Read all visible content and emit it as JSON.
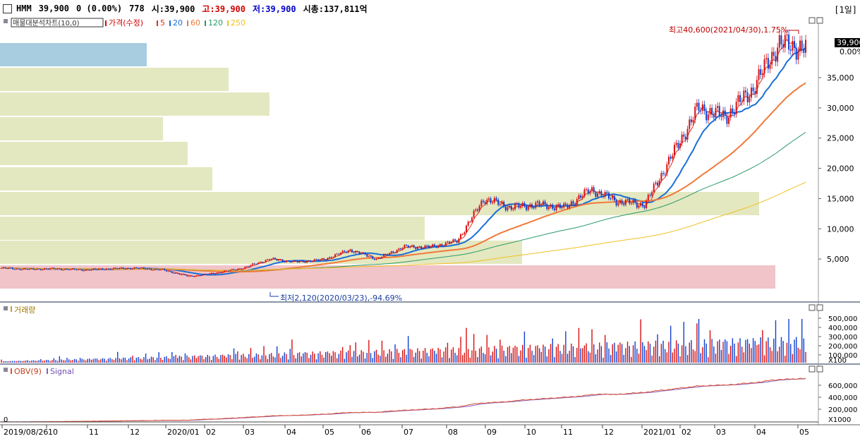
{
  "header": {
    "stock_name": "HMM",
    "price": "39,900",
    "change": "0 (0.00%)",
    "volume": "778",
    "open": "시:39,900",
    "high": "고:39,900",
    "low": "저:39,900",
    "market_cap": "시총:137,811억",
    "period": "[1일]"
  },
  "price_panel": {
    "legend_box": "매물대분석차트(10,0)",
    "legend_price": "가격(수정)",
    "ma_labels": [
      "5",
      "20",
      "60",
      "120",
      "250"
    ],
    "ma_colors": [
      "#e03020",
      "#1a6fd8",
      "#f07a3a",
      "#2a9a6a",
      "#f0c020"
    ],
    "high_note": "최고40,600(2021/04/30),1.75%",
    "low_note": "최저2,120(2020/03/23),-94.69%",
    "current_price_tag": "39,900",
    "current_change_tag": "0.00%",
    "y_ticks": [
      "35,000",
      "30,000",
      "25,000",
      "20,000",
      "15,000",
      "10,000",
      "5,000"
    ]
  },
  "volume_panel": {
    "title": "거래량",
    "y_ticks": [
      "500,000",
      "400,000",
      "300,000",
      "200,000",
      "100,000"
    ],
    "unit": "X100"
  },
  "obv_panel": {
    "title_obv": "OBV(9)",
    "title_signal": "Signal",
    "y_ticks": [
      "600,000",
      "400,000",
      "200,000"
    ],
    "unit": "X1000",
    "zero_label": "0"
  },
  "x_axis": {
    "labels": [
      "2019/08/26",
      "10",
      "11",
      "12",
      "2020/01",
      "02",
      "03",
      "04",
      "05",
      "06",
      "07",
      "08",
      "09",
      "10",
      "11",
      "12",
      "2021/01",
      "02",
      "03",
      "04",
      "05"
    ]
  },
  "chart_data": {
    "type": "candlestick",
    "price_range": [
      2120,
      40600
    ],
    "price_series_anchor_values": [
      3500,
      3300,
      3400,
      3200,
      3400,
      3500,
      3200,
      2120,
      2700,
      3500,
      5000,
      4500,
      4900,
      6500,
      5000,
      7000,
      7000,
      8000,
      15000,
      13500,
      14000,
      13500,
      16500,
      14500,
      14000,
      22000,
      30000,
      28500,
      33000,
      40600,
      39900
    ],
    "volume_profile_levels": [
      {
        "level": 40000,
        "strength": 0.18
      },
      {
        "level": 36000,
        "strength": 0.28
      },
      {
        "level": 32500,
        "strength": 0.33
      },
      {
        "level": 28500,
        "strength": 0.2
      },
      {
        "level": 25000,
        "strength": 0.23
      },
      {
        "level": 21000,
        "strength": 0.26
      },
      {
        "level": 17000,
        "strength": 0.93
      },
      {
        "level": 13000,
        "strength": 0.52
      },
      {
        "level": 9500,
        "strength": 0.64
      },
      {
        "level": 5500,
        "strength": 0.95
      }
    ]
  }
}
